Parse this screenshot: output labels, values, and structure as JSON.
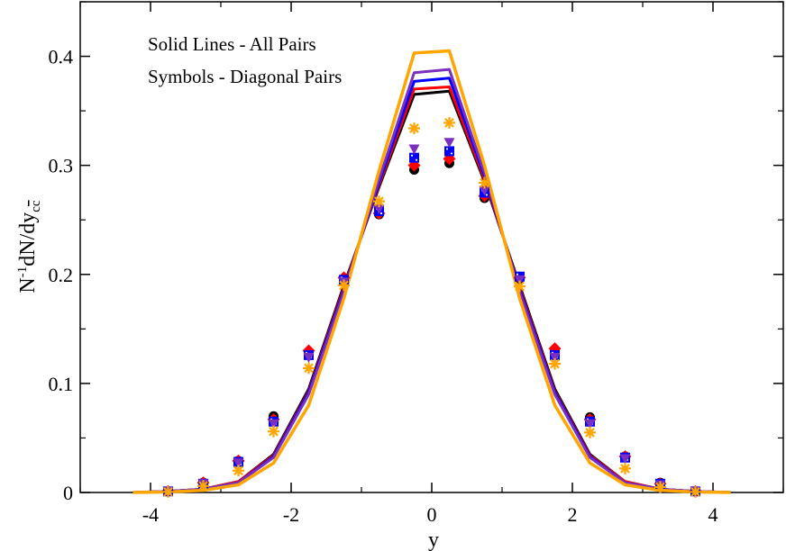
{
  "chart_data": {
    "type": "line",
    "xlabel": "y",
    "ylabel_main": "N",
    "ylabel_sup": "-1",
    "ylabel_mid": "dN/dy",
    "ylabel_sub": "c",
    "ylabel_sub_overline": "c",
    "xlim": [
      -5,
      5
    ],
    "ylim": [
      0,
      0.45
    ],
    "xticks": [
      -4,
      -2,
      0,
      2,
      4
    ],
    "xtick_labels": [
      "-4",
      "-2",
      "0",
      "2",
      "4"
    ],
    "yticks": [
      0,
      0.1,
      0.2,
      0.3,
      0.4
    ],
    "ytick_labels": [
      "0",
      "0.1",
      "0.2",
      "0.3",
      "0.4"
    ],
    "grid": false,
    "annotations": [
      "Solid Lines - All Pairs",
      "Symbols - Diagonal Pairs"
    ],
    "x": [
      -4.25,
      -3.75,
      -3.25,
      -2.75,
      -2.25,
      -1.75,
      -1.25,
      -0.75,
      -0.25,
      0.25,
      0.75,
      1.25,
      1.75,
      2.25,
      2.75,
      3.25,
      3.75,
      4.25
    ],
    "series": [
      {
        "color": "#000000",
        "values": [
          0,
          0.001,
          0.003,
          0.01,
          0.035,
          0.095,
          0.19,
          0.28,
          0.365,
          0.368,
          0.285,
          0.19,
          0.095,
          0.035,
          0.01,
          0.003,
          0.001,
          0
        ]
      },
      {
        "color": "#ff0000",
        "values": [
          0,
          0.001,
          0.003,
          0.01,
          0.034,
          0.093,
          0.188,
          0.282,
          0.37,
          0.372,
          0.287,
          0.188,
          0.093,
          0.034,
          0.01,
          0.003,
          0.001,
          0
        ]
      },
      {
        "color": "#0000ff",
        "values": [
          0,
          0.001,
          0.003,
          0.009,
          0.033,
          0.092,
          0.186,
          0.284,
          0.377,
          0.38,
          0.29,
          0.186,
          0.092,
          0.033,
          0.009,
          0.003,
          0.001,
          0
        ]
      },
      {
        "color": "#7b2fbf",
        "values": [
          0,
          0.001,
          0.003,
          0.009,
          0.032,
          0.09,
          0.184,
          0.287,
          0.385,
          0.388,
          0.293,
          0.184,
          0.09,
          0.032,
          0.009,
          0.003,
          0.001,
          0
        ]
      },
      {
        "color": "#ffa500",
        "values": [
          0,
          0.0005,
          0.002,
          0.007,
          0.027,
          0.08,
          0.178,
          0.295,
          0.403,
          0.405,
          0.3,
          0.178,
          0.08,
          0.027,
          0.007,
          0.002,
          0.0005,
          0
        ]
      }
    ],
    "symbol_x": [
      -3.75,
      -3.25,
      -2.75,
      -2.25,
      -1.75,
      -1.25,
      -0.75,
      -0.25,
      0.25,
      0.75,
      1.25,
      1.75,
      2.25,
      2.75,
      3.25,
      3.75
    ],
    "symbols": [
      {
        "marker": "circle",
        "color": "#000000",
        "values": [
          0.001,
          0.009,
          0.029,
          0.07,
          0.129,
          0.196,
          0.255,
          0.296,
          0.302,
          0.27,
          0.196,
          0.129,
          0.069,
          0.033,
          0.009,
          0.001
        ]
      },
      {
        "marker": "diamond",
        "color": "#ff0000",
        "values": [
          0.001,
          0.009,
          0.029,
          0.067,
          0.13,
          0.197,
          0.256,
          0.3,
          0.306,
          0.272,
          0.197,
          0.132,
          0.067,
          0.033,
          0.008,
          0.001
        ]
      },
      {
        "marker": "square",
        "color": "#0000ff",
        "values": [
          0.001,
          0.008,
          0.028,
          0.065,
          0.126,
          0.195,
          0.258,
          0.307,
          0.313,
          0.275,
          0.198,
          0.126,
          0.065,
          0.032,
          0.008,
          0.001
        ]
      },
      {
        "marker": "triangle-down",
        "color": "#7b2fbf",
        "values": [
          0.001,
          0.008,
          0.027,
          0.063,
          0.124,
          0.193,
          0.26,
          0.315,
          0.321,
          0.277,
          0.195,
          0.124,
          0.063,
          0.031,
          0.007,
          0.001
        ]
      },
      {
        "marker": "star",
        "color": "#ffa500",
        "values": [
          0.0005,
          0.006,
          0.02,
          0.056,
          0.114,
          0.19,
          0.267,
          0.334,
          0.339,
          0.284,
          0.189,
          0.118,
          0.055,
          0.022,
          0.005,
          0.0005
        ]
      }
    ]
  }
}
